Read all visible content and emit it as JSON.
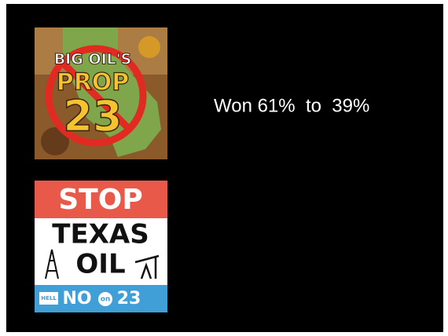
{
  "slide": {
    "caption": "Won 61%  to  39%",
    "images": [
      {
        "lines": [
          "BIG OIL'S",
          "PROP",
          "23"
        ]
      },
      {
        "lines": [
          "STOP",
          "TEXAS",
          "OIL"
        ],
        "footer": [
          "HELL",
          "NO",
          "on",
          "23"
        ]
      }
    ]
  }
}
